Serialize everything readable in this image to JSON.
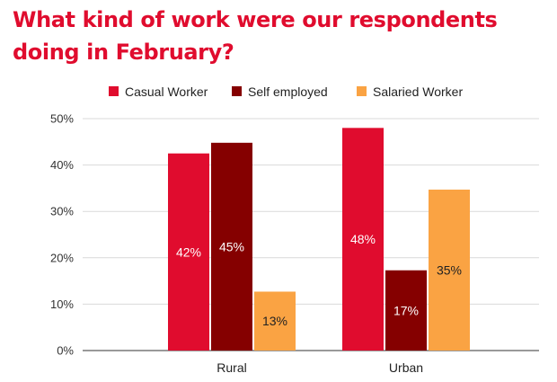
{
  "title": "What kind of work were our respondents doing in February?",
  "chart_data": {
    "type": "bar",
    "categories": [
      "Rural",
      "Urban"
    ],
    "series": [
      {
        "name": "Casual Worker",
        "color": "#e00c2e",
        "values": [
          42.5,
          48
        ],
        "labels": [
          "42%",
          "48%"
        ],
        "label_color": "#ffffff"
      },
      {
        "name": "Self employed",
        "color": "#850000",
        "values": [
          44.8,
          17.3
        ],
        "labels": [
          "45%",
          "17%"
        ],
        "label_color": "#ffffff"
      },
      {
        "name": "Salaried Worker",
        "color": "#faa343",
        "values": [
          12.7,
          34.7
        ],
        "labels": [
          "13%",
          "35%"
        ],
        "label_color": "#222222"
      }
    ],
    "yticks": [
      "0%",
      "10%",
      "20%",
      "30%",
      "40%",
      "50%"
    ],
    "ylim": [
      0,
      50
    ],
    "grid": true,
    "legend": "top"
  }
}
